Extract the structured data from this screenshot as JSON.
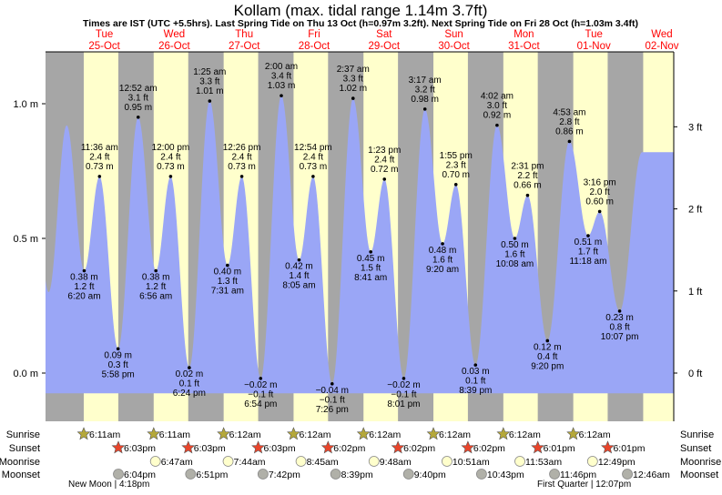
{
  "chart_data": {
    "type": "area",
    "title": "Kollam (max. tidal range 1.14m 3.7ft)",
    "subtitle": "Times are IST (UTC +5.5hrs). Last Spring Tide on Thu 13 Oct (h=0.97m 3.2ft). Next Spring Tide on Fri 28 Oct (h=1.03m 3.4ft)",
    "days": [
      {
        "dow": "Tue",
        "date": "25-Oct"
      },
      {
        "dow": "Wed",
        "date": "26-Oct"
      },
      {
        "dow": "Thu",
        "date": "27-Oct"
      },
      {
        "dow": "Fri",
        "date": "28-Oct"
      },
      {
        "dow": "Sat",
        "date": "29-Oct"
      },
      {
        "dow": "Sun",
        "date": "30-Oct"
      },
      {
        "dow": "Mon",
        "date": "31-Oct"
      },
      {
        "dow": "Tue",
        "date": "01-Nov"
      },
      {
        "dow": "Wed",
        "date": "02-Nov"
      }
    ],
    "y_left": {
      "unit": "m",
      "ticks": [
        "0.0 m",
        "0.5 m",
        "1.0 m"
      ],
      "values": [
        0,
        0.5,
        1.0
      ]
    },
    "y_right": {
      "unit": "ft",
      "ticks": [
        "0 ft",
        "1 ft",
        "2 ft",
        "3 ft"
      ],
      "values": [
        0,
        1,
        2,
        3
      ]
    },
    "ylim_m": [
      -0.18,
      1.19
    ],
    "tides": [
      {
        "day": 0,
        "time": "6:20 am",
        "m": "0.38 m",
        "h": 0.38,
        "ft": "1.2 ft",
        "type": "low"
      },
      {
        "day": 0,
        "time": "11:36 am",
        "m": "0.73 m",
        "h": 0.73,
        "ft": "2.4 ft",
        "type": "high"
      },
      {
        "day": 0,
        "time": "5:58 pm",
        "m": "0.09 m",
        "h": 0.09,
        "ft": "0.3 ft",
        "type": "low"
      },
      {
        "day": 1,
        "time": "12:52 am",
        "m": "0.95 m",
        "h": 0.95,
        "ft": "3.1 ft",
        "type": "high"
      },
      {
        "day": 1,
        "time": "6:56 am",
        "m": "0.38 m",
        "h": 0.38,
        "ft": "1.2 ft",
        "type": "low"
      },
      {
        "day": 1,
        "time": "12:00 pm",
        "m": "0.73 m",
        "h": 0.73,
        "ft": "2.4 ft",
        "type": "high"
      },
      {
        "day": 1,
        "time": "6:24 pm",
        "m": "0.02 m",
        "h": 0.02,
        "ft": "0.1 ft",
        "type": "low"
      },
      {
        "day": 2,
        "time": "1:25 am",
        "m": "1.01 m",
        "h": 1.01,
        "ft": "3.3 ft",
        "type": "high"
      },
      {
        "day": 2,
        "time": "7:31 am",
        "m": "0.40 m",
        "h": 0.4,
        "ft": "1.3 ft",
        "type": "low"
      },
      {
        "day": 2,
        "time": "12:26 pm",
        "m": "0.73 m",
        "h": 0.73,
        "ft": "2.4 ft",
        "type": "high"
      },
      {
        "day": 2,
        "time": "6:54 pm",
        "m": "−0.02 m",
        "h": -0.02,
        "ft": "−0.1 ft",
        "type": "low"
      },
      {
        "day": 3,
        "time": "2:00 am",
        "m": "1.03 m",
        "h": 1.03,
        "ft": "3.4 ft",
        "type": "high"
      },
      {
        "day": 3,
        "time": "8:05 am",
        "m": "0.42 m",
        "h": 0.42,
        "ft": "1.4 ft",
        "type": "low"
      },
      {
        "day": 3,
        "time": "12:54 pm",
        "m": "0.73 m",
        "h": 0.73,
        "ft": "2.4 ft",
        "type": "high"
      },
      {
        "day": 3,
        "time": "7:26 pm",
        "m": "−0.04 m",
        "h": -0.04,
        "ft": "−0.1 ft",
        "type": "low"
      },
      {
        "day": 4,
        "time": "2:37 am",
        "m": "1.02 m",
        "h": 1.02,
        "ft": "3.3 ft",
        "type": "high"
      },
      {
        "day": 4,
        "time": "8:41 am",
        "m": "0.45 m",
        "h": 0.45,
        "ft": "1.5 ft",
        "type": "low"
      },
      {
        "day": 4,
        "time": "1:23 pm",
        "m": "0.72 m",
        "h": 0.72,
        "ft": "2.4 ft",
        "type": "high"
      },
      {
        "day": 4,
        "time": "8:01 pm",
        "m": "−0.02 m",
        "h": -0.02,
        "ft": "−0.1 ft",
        "type": "low"
      },
      {
        "day": 5,
        "time": "3:17 am",
        "m": "0.98 m",
        "h": 0.98,
        "ft": "3.2 ft",
        "type": "high"
      },
      {
        "day": 5,
        "time": "9:20 am",
        "m": "0.48 m",
        "h": 0.48,
        "ft": "1.6 ft",
        "type": "low"
      },
      {
        "day": 5,
        "time": "1:55 pm",
        "m": "0.70 m",
        "h": 0.7,
        "ft": "2.3 ft",
        "type": "high"
      },
      {
        "day": 5,
        "time": "8:39 pm",
        "m": "0.03 m",
        "h": 0.03,
        "ft": "0.1 ft",
        "type": "low"
      },
      {
        "day": 6,
        "time": "4:02 am",
        "m": "0.92 m",
        "h": 0.92,
        "ft": "3.0 ft",
        "type": "high"
      },
      {
        "day": 6,
        "time": "10:08 am",
        "m": "0.50 m",
        "h": 0.5,
        "ft": "1.6 ft",
        "type": "low"
      },
      {
        "day": 6,
        "time": "2:31 pm",
        "m": "0.66 m",
        "h": 0.66,
        "ft": "2.2 ft",
        "type": "high"
      },
      {
        "day": 6,
        "time": "9:20 pm",
        "m": "0.12 m",
        "h": 0.12,
        "ft": "0.4 ft",
        "type": "low"
      },
      {
        "day": 7,
        "time": "4:53 am",
        "m": "0.86 m",
        "h": 0.86,
        "ft": "2.8 ft",
        "type": "high"
      },
      {
        "day": 7,
        "time": "11:18 am",
        "m": "0.51 m",
        "h": 0.51,
        "ft": "1.7 ft",
        "type": "low"
      },
      {
        "day": 7,
        "time": "3:16 pm",
        "m": "0.60 m",
        "h": 0.6,
        "ft": "2.0 ft",
        "type": "high"
      },
      {
        "day": 7,
        "time": "10:07 pm",
        "m": "0.23 m",
        "h": 0.23,
        "ft": "0.8 ft",
        "type": "low"
      }
    ],
    "sun_moon": {
      "row_labels": [
        "Sunrise",
        "Sunset",
        "Moonrise",
        "Moonset"
      ],
      "sunrise": [
        {
          "day": 0,
          "time": "6:11am"
        },
        {
          "day": 1,
          "time": "6:11am"
        },
        {
          "day": 2,
          "time": "6:12am"
        },
        {
          "day": 3,
          "time": "6:12am"
        },
        {
          "day": 4,
          "time": "6:12am"
        },
        {
          "day": 5,
          "time": "6:12am"
        },
        {
          "day": 6,
          "time": "6:12am"
        },
        {
          "day": 7,
          "time": "6:12am"
        }
      ],
      "sunset": [
        {
          "day": 0,
          "time": "6:03pm"
        },
        {
          "day": 1,
          "time": "6:03pm"
        },
        {
          "day": 2,
          "time": "6:03pm"
        },
        {
          "day": 3,
          "time": "6:02pm"
        },
        {
          "day": 4,
          "time": "6:02pm"
        },
        {
          "day": 5,
          "time": "6:02pm"
        },
        {
          "day": 6,
          "time": "6:01pm"
        },
        {
          "day": 7,
          "time": "6:01pm"
        }
      ],
      "moonrise": [
        {
          "day": 1,
          "time": "6:47am"
        },
        {
          "day": 2,
          "time": "7:44am"
        },
        {
          "day": 3,
          "time": "8:45am"
        },
        {
          "day": 4,
          "time": "9:48am"
        },
        {
          "day": 5,
          "time": "10:51am"
        },
        {
          "day": 6,
          "time": "11:53am"
        },
        {
          "day": 7,
          "time": "12:49pm"
        }
      ],
      "moonset": [
        {
          "day": 0,
          "time": "6:04pm"
        },
        {
          "day": 1,
          "time": "6:51pm"
        },
        {
          "day": 2,
          "time": "7:42pm"
        },
        {
          "day": 3,
          "time": "8:39pm"
        },
        {
          "day": 4,
          "time": "9:40pm"
        },
        {
          "day": 5,
          "time": "10:43pm"
        },
        {
          "day": 6,
          "time": "11:46pm"
        },
        {
          "day": 8,
          "time": "12:46am"
        }
      ],
      "phases": [
        {
          "day": 0,
          "label": "New Moon | 4:18pm",
          "time": "4:18pm"
        },
        {
          "day": 7,
          "label": "First Quarter | 12:07pm",
          "time": "12:07pm"
        }
      ]
    },
    "colors": {
      "night": "#a6a6a6",
      "day": "#ffffcc",
      "water": "#9aa6f6",
      "day_label": "#ff0000",
      "sunrise": "#b5a83a",
      "sunset": "#e8452b",
      "moonrise": "#ffffcc",
      "moonset": "#b0b0a8"
    }
  }
}
